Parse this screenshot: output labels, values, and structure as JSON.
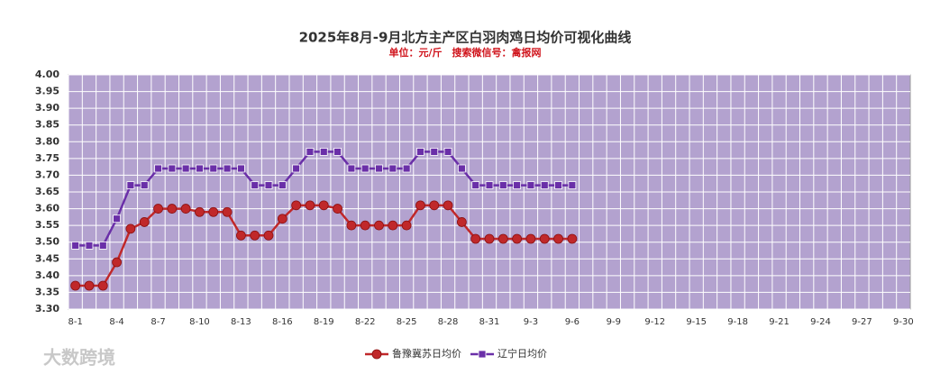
{
  "chart_data": {
    "type": "line",
    "title": "2025年8月-9月北方主产区白羽肉鸡日均价可视化曲线",
    "subtitle": "单位：元/斤　搜索微信号：禽报网",
    "watermark": "大数跨境",
    "categories": [
      "8-1",
      null,
      null,
      "8-4",
      null,
      null,
      "8-7",
      null,
      null,
      "8-10",
      null,
      null,
      "8-13",
      null,
      null,
      "8-16",
      null,
      null,
      "8-19",
      null,
      null,
      "8-22",
      null,
      null,
      "8-25",
      null,
      null,
      "8-28",
      null,
      null,
      "8-31",
      null,
      null,
      "9-3",
      null,
      null,
      "9-6",
      null,
      null,
      "9-9",
      null,
      null,
      "9-12",
      null,
      null,
      "9-15",
      null,
      null,
      "9-18",
      null,
      null,
      "9-21",
      null,
      null,
      "9-24",
      null,
      null,
      "9-27",
      null,
      null,
      "9-30"
    ],
    "series": [
      {
        "name": "鲁豫冀苏日均价",
        "color": "#c0282a",
        "marker": "circle",
        "values": [
          3.37,
          3.37,
          3.37,
          3.44,
          3.54,
          3.56,
          3.6,
          3.6,
          3.6,
          3.59,
          3.59,
          3.59,
          3.52,
          3.52,
          3.52,
          3.57,
          3.61,
          3.61,
          3.61,
          3.6,
          3.55,
          3.55,
          3.55,
          3.55,
          3.55,
          3.61,
          3.61,
          3.61,
          3.56,
          3.51,
          3.51,
          3.51,
          3.51,
          3.51,
          3.51,
          3.51,
          3.51,
          null,
          null,
          null,
          null,
          null,
          null,
          null,
          null,
          null,
          null,
          null,
          null,
          null,
          null,
          null,
          null,
          null,
          null,
          null,
          null,
          null,
          null,
          null,
          null
        ]
      },
      {
        "name": "辽宁日均价",
        "color": "#6a2fa8",
        "marker": "square",
        "values": [
          3.49,
          3.49,
          3.49,
          3.57,
          3.67,
          3.67,
          3.72,
          3.72,
          3.72,
          3.72,
          3.72,
          3.72,
          3.72,
          3.67,
          3.67,
          3.67,
          3.72,
          3.77,
          3.77,
          3.77,
          3.72,
          3.72,
          3.72,
          3.72,
          3.72,
          3.77,
          3.77,
          3.77,
          3.72,
          3.67,
          3.67,
          3.67,
          3.67,
          3.67,
          3.67,
          3.67,
          3.67,
          null,
          null,
          null,
          null,
          null,
          null,
          null,
          null,
          null,
          null,
          null,
          null,
          null,
          null,
          null,
          null,
          null,
          null,
          null,
          null,
          null,
          null,
          null,
          null
        ]
      }
    ],
    "ylim": [
      3.3,
      4.0
    ],
    "yticks": [
      {
        "value": 3.3,
        "label": "3.30"
      },
      {
        "value": 3.35,
        "label": "3.35"
      },
      {
        "value": 3.4,
        "label": "3.40"
      },
      {
        "value": 3.45,
        "label": "3.45"
      },
      {
        "value": 3.5,
        "label": "3.50"
      },
      {
        "value": 3.55,
        "label": "3.55"
      },
      {
        "value": 3.6,
        "label": "3.60"
      },
      {
        "value": 3.65,
        "label": "3.65"
      },
      {
        "value": 3.7,
        "label": "3.70"
      },
      {
        "value": 3.75,
        "label": "3.75"
      },
      {
        "value": 3.8,
        "label": "3.80"
      },
      {
        "value": 3.85,
        "label": "3.85"
      },
      {
        "value": 3.9,
        "label": "3.90"
      },
      {
        "value": 3.95,
        "label": "3.95"
      },
      {
        "value": 4.0,
        "label": "4.00"
      }
    ],
    "grid": true,
    "legend": "bottom",
    "plot_background": "#b3a2cf"
  }
}
